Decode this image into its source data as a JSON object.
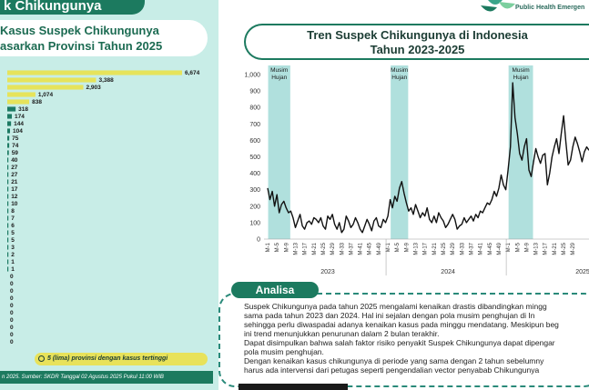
{
  "header": {
    "banner": "k Chikungunya",
    "left_title_line1": "Kasus Suspek Chikungunya",
    "left_title_line2": "asarkan Provinsi Tahun 2025",
    "logo_text": "Public Health Emergen",
    "right_title_line1": "Tren Suspek Chikungunya di Indonesia",
    "right_title_line2": "Tahun 2023-2025"
  },
  "callout": "5 (lima) provinsi dengan kasus tertinggi",
  "source": "n 2025. Sumber: SKDR Tanggal 02 Agustus 2025 Pukul 11:00 WIB",
  "analisa": {
    "label": "Analisa",
    "bullets": [
      [
        "Suspek Chikungunya pada tahun 2025 mengalami kenaikan drastis dibandingkan mingg",
        "sama pada tahun 2023 dan 2024. Hal ini sejalan dengan pola musim penghujan di In",
        "sehingga perlu diwaspadai adanya kenaikan kasus pada minggu mendatang. Meskipun beg",
        "ini trend menunjukkan penurunan dalam 2 bulan terakhir."
      ],
      [
        "Dapat disimpulkan bahwa salah faktor risiko penyakit Suspek Chikungunya dapat dipengar",
        "pola musim penghujan."
      ],
      [
        "Dengan kenaikan kasus chikungunya di periode yang sama dengan 2 tahun sebelumny",
        "harus ada intervensi dari petugas seperti pengendalian vector penyabab Chikungunya"
      ]
    ]
  },
  "chart_data": [
    {
      "type": "bar",
      "orientation": "horizontal",
      "values": [
        6674,
        3388,
        2903,
        1074,
        838,
        318,
        174,
        144,
        104,
        75,
        74,
        59,
        40,
        27,
        27,
        21,
        17,
        12,
        10,
        8,
        7,
        6,
        5,
        5,
        3,
        2,
        1,
        1,
        0,
        0,
        0,
        0,
        0,
        0,
        0,
        0,
        0,
        0
      ],
      "value_labels": [
        "6,674",
        "3,388",
        "2,903",
        "1,074",
        "838",
        "318",
        "174",
        "144",
        "104",
        "75",
        "74",
        "59",
        "40",
        "27",
        "27",
        "21",
        "17",
        "12",
        "10",
        "8",
        "7",
        "6",
        "5",
        "5",
        "3",
        "2",
        "1",
        "1",
        "0",
        "0",
        "0",
        "0",
        "0",
        "0",
        "0",
        "0",
        "0",
        "0"
      ],
      "highlight_top": 5,
      "colors": {
        "highlight": "#e6e35b",
        "normal": "#1d7a63"
      }
    },
    {
      "type": "line",
      "y_ticks": [
        "0",
        "100",
        "200",
        "300",
        "400",
        "500",
        "600",
        "700",
        "800",
        "900",
        "1,000"
      ],
      "ylim": [
        0,
        1000
      ],
      "years": [
        "2023",
        "2024",
        "2025"
      ],
      "week_ticks": [
        "M-1",
        "M-5",
        "M-9",
        "M-13",
        "M-17",
        "M-21",
        "M-25",
        "M-29",
        "M-33",
        "M-37",
        "M-41",
        "M-45",
        "M-49",
        "M-1",
        "M-5",
        "M-9",
        "M-13",
        "M-17",
        "M-21",
        "M-25",
        "M-29",
        "M-33",
        "M-37",
        "M-41",
        "M-45",
        "M-49",
        "M-1",
        "M-5",
        "M-9",
        "M-13",
        "M-17",
        "M-21",
        "M-25",
        "M-29"
      ],
      "season_label_1": "Musim",
      "season_label_2": "Hujan",
      "season_bands": [
        [
          1,
          9
        ],
        [
          54,
          60
        ],
        [
          105,
          114
        ]
      ],
      "values": [
        310,
        240,
        290,
        200,
        270,
        160,
        210,
        230,
        190,
        160,
        170,
        130,
        70,
        110,
        150,
        80,
        60,
        100,
        110,
        90,
        130,
        120,
        100,
        130,
        80,
        60,
        140,
        120,
        150,
        90,
        60,
        100,
        40,
        60,
        140,
        110,
        70,
        90,
        130,
        100,
        60,
        40,
        80,
        120,
        90,
        50,
        110,
        130,
        80,
        70,
        120,
        100,
        140,
        240,
        190,
        260,
        230,
        310,
        350,
        280,
        220,
        170,
        190,
        150,
        210,
        170,
        130,
        160,
        140,
        190,
        120,
        100,
        140,
        100,
        160,
        130,
        110,
        70,
        90,
        120,
        150,
        120,
        60,
        80,
        90,
        130,
        100,
        120,
        140,
        110,
        150,
        130,
        170,
        160,
        190,
        220,
        210,
        240,
        290,
        260,
        310,
        390,
        330,
        300,
        420,
        560,
        950,
        740,
        640,
        520,
        480,
        560,
        610,
        420,
        380,
        470,
        550,
        500,
        460,
        510,
        520,
        330,
        400,
        500,
        560,
        610,
        520,
        640,
        750,
        590,
        450,
        480,
        560,
        620,
        580,
        530,
        470,
        530,
        560,
        540
      ],
      "colors": {
        "line": "#111111",
        "band": "#8fd3cf"
      }
    }
  ]
}
